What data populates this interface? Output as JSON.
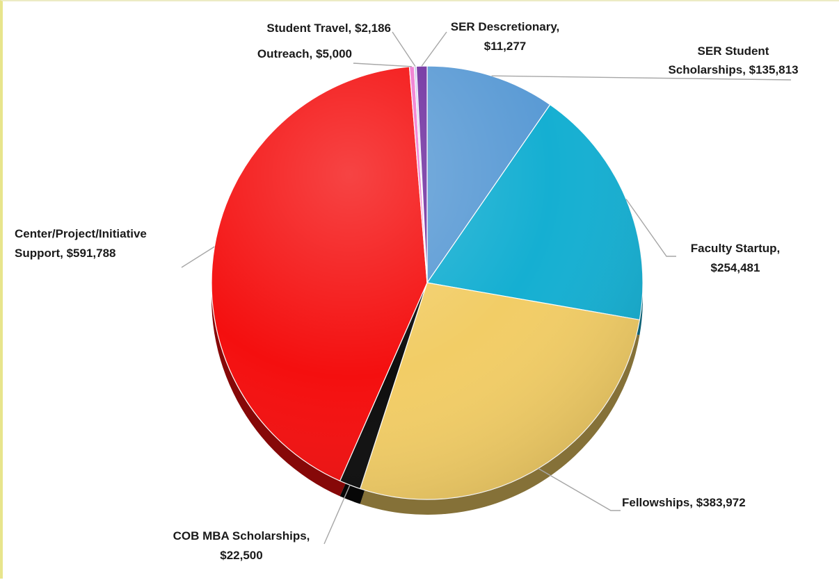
{
  "chart_data": {
    "type": "pie",
    "title": "",
    "start_angle_deg": 0,
    "direction": "clockwise",
    "legend": "none",
    "slices": [
      {
        "name": "SER Student Scholarships",
        "value": 135813,
        "value_label": "$135,813",
        "color": "#5b9bd5",
        "label_lines": [
          "SER Student",
          "Scholarships,  $135,813"
        ]
      },
      {
        "name": "Faculty Startup",
        "value": 254481,
        "value_label": "$254,481",
        "color": "#15afd2",
        "label_lines": [
          "Faculty Startup,",
          "$254,481"
        ]
      },
      {
        "name": "Fellowships",
        "value": 383972,
        "value_label": "$383,972",
        "color": "#f2cd66",
        "label_lines": [
          "Fellowships,  $383,972"
        ]
      },
      {
        "name": "COB MBA Scholarships",
        "value": 22500,
        "value_label": "$22,500",
        "color": "#0d0d0d",
        "label_lines": [
          "COB MBA Scholarships,",
          "$22,500"
        ]
      },
      {
        "name": "Center/Project/Initiative Support",
        "value": 591788,
        "value_label": "$591,788",
        "color": "#f40f0f",
        "label_lines": [
          "Center/Project/Initiative",
          "Support,  $591,788"
        ]
      },
      {
        "name": "Outreach",
        "value": 5000,
        "value_label": "$5,000",
        "color": "#f07ad0",
        "label_lines": [
          "Outreach,  $5,000"
        ]
      },
      {
        "name": "Student Travel",
        "value": 2186,
        "value_label": "$2,186",
        "color": "#c3c6e8",
        "label_lines": [
          "Student Travel,  $2,186"
        ]
      },
      {
        "name": "SER Descretionary",
        "value": 11277,
        "value_label": "$11,277",
        "color": "#7030a0",
        "label_lines": [
          "SER Descretionary,",
          "$11,277"
        ]
      }
    ]
  }
}
